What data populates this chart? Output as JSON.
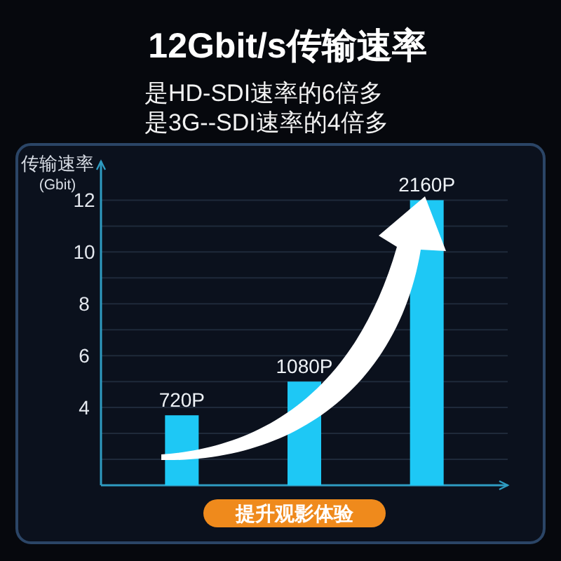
{
  "chart_data": {
    "type": "bar",
    "title": "12Gbit/s传输速率",
    "subtitle": "是HD-SDI速率的6倍多是3G--SDI速率的4倍多",
    "ylabel": "传输速率\n(Gbit)",
    "categories": [
      "720P",
      "1080P",
      "2160P"
    ],
    "values": [
      3.7,
      5,
      12
    ],
    "color": "#1ec8f5",
    "ylim": [
      1,
      13.5
    ],
    "yticks": [
      {
        "value": 2,
        "label": null
      },
      {
        "value": 3,
        "label": null
      },
      4,
      {
        "value": 5,
        "label": null
      },
      6,
      {
        "value": 7,
        "label": null
      },
      8,
      {
        "value": 9,
        "label": null
      },
      10,
      {
        "value": 11,
        "label": null
      },
      12
    ],
    "grid": "y",
    "annotations": [
      "提升观影体验"
    ]
  }
}
